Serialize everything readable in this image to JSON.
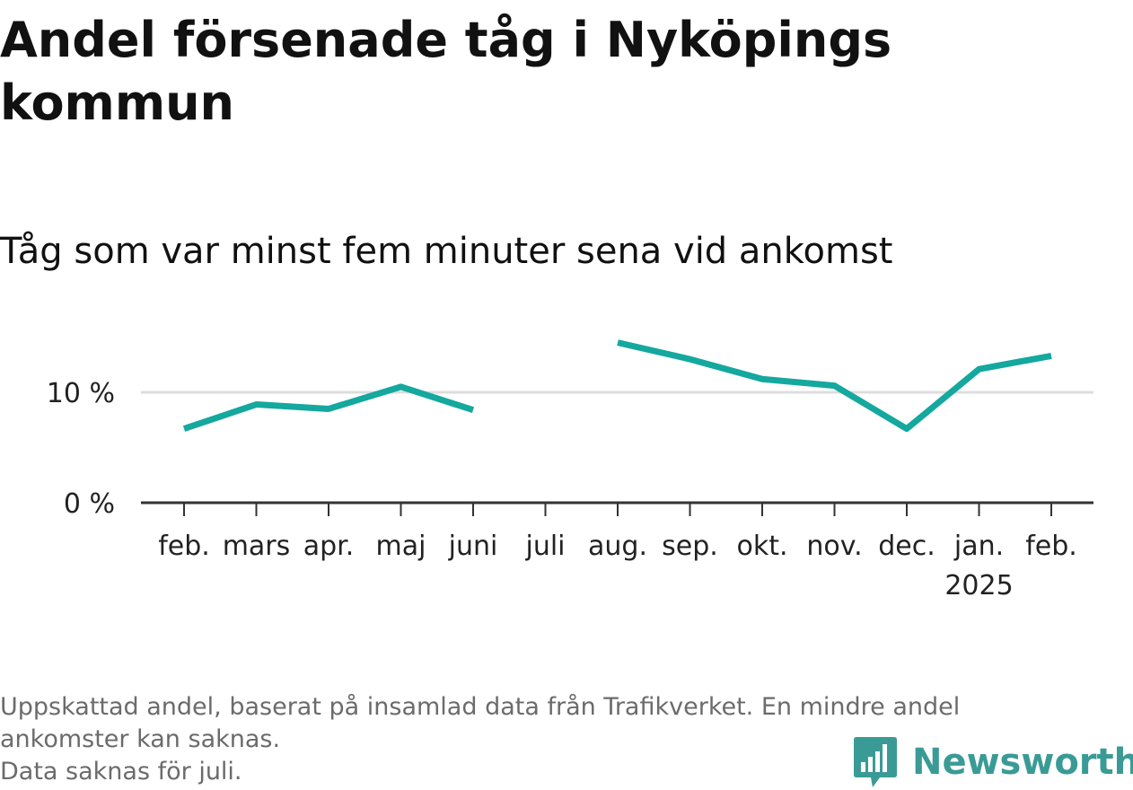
{
  "title": "Andel försenade tåg i Nyköpings kommun",
  "subtitle": "Tåg som var minst fem minuter sena vid ankomst",
  "colors": {
    "line": "#14a89f",
    "grid": "#dddddd",
    "axis": "#333333",
    "footer_text": "#6b6b6b",
    "logo": "#3a9b96"
  },
  "chart_data": {
    "type": "line",
    "categories": [
      "feb.",
      "mars",
      "apr.",
      "maj",
      "juni",
      "juli",
      "aug.",
      "sep.",
      "okt.",
      "nov.",
      "dec.",
      "jan.",
      "feb."
    ],
    "category_sublabels": [
      "",
      "",
      "",
      "",
      "",
      "",
      "",
      "",
      "",
      "",
      "",
      "2025",
      ""
    ],
    "series": [
      {
        "name": "",
        "values": [
          6.7,
          8.9,
          8.5,
          10.5,
          8.4,
          null,
          14.5,
          13.0,
          11.2,
          10.6,
          6.7,
          12.1,
          13.3
        ]
      }
    ],
    "ylim": [
      0,
      16
    ],
    "yticks": [
      {
        "value": 0,
        "label": "0 %"
      },
      {
        "value": 10,
        "label": "10 %"
      }
    ],
    "grid": true,
    "xlabel": "",
    "ylabel": ""
  },
  "footer": {
    "note_line1": "Uppskattad andel, baserat på insamlad data från Trafikverket. En mindre andel",
    "note_line2": "ankomster kan saknas.",
    "note_line3": "Data saknas för juli."
  },
  "logo": {
    "name": "Newsworthy",
    "icon": "bar-chart-speech-bubble-icon"
  }
}
